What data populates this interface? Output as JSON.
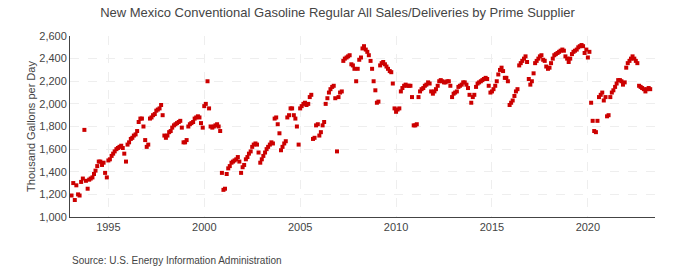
{
  "chart_data": {
    "type": "scatter",
    "title": "New Mexico Conventional Gasoline Regular All Sales/Deliveries by Prime Supplier",
    "ylabel": "Thousand Gallons per Day",
    "annotations": [
      "Source: U.S. Energy Information Administration"
    ],
    "color": "#cc0000",
    "marker": "square",
    "grid": true,
    "xlim": [
      1993.0,
      2023.5
    ],
    "xticks": [
      1995,
      2000,
      2005,
      2010,
      2015,
      2020
    ],
    "ylim": [
      1000,
      2600
    ],
    "yticks": [
      {
        "value": 1000,
        "label": "1,000"
      },
      {
        "value": 1200,
        "label": "1,200"
      },
      {
        "value": 1400,
        "label": "1,400"
      },
      {
        "value": 1600,
        "label": "1,600"
      },
      {
        "value": 1800,
        "label": "1,800"
      },
      {
        "value": 2000,
        "label": "2,000"
      },
      {
        "value": 2200,
        "label": "2,200"
      },
      {
        "value": 2400,
        "label": "2,400"
      },
      {
        "value": 2600,
        "label": "2,600"
      }
    ],
    "x": [
      1993.08,
      1993.17,
      1993.25,
      1993.33,
      1993.42,
      1993.5,
      1993.58,
      1993.67,
      1993.75,
      1993.83,
      1993.92,
      1994.0,
      1994.08,
      1994.17,
      1994.25,
      1994.33,
      1994.42,
      1994.5,
      1994.58,
      1994.67,
      1994.75,
      1994.83,
      1994.92,
      1995.0,
      1995.08,
      1995.17,
      1995.25,
      1995.33,
      1995.42,
      1995.5,
      1995.58,
      1995.67,
      1995.75,
      1995.83,
      1995.92,
      1996.0,
      1996.08,
      1996.17,
      1996.25,
      1996.33,
      1996.42,
      1996.5,
      1996.58,
      1996.67,
      1996.75,
      1996.83,
      1996.92,
      1997.0,
      1997.08,
      1997.17,
      1997.25,
      1997.33,
      1997.42,
      1997.5,
      1997.58,
      1997.67,
      1997.75,
      1997.83,
      1997.92,
      1998.0,
      1998.08,
      1998.17,
      1998.25,
      1998.33,
      1998.42,
      1998.5,
      1998.58,
      1998.67,
      1998.75,
      1998.83,
      1998.92,
      1999.0,
      1999.08,
      1999.17,
      1999.25,
      1999.33,
      1999.42,
      1999.5,
      1999.58,
      1999.67,
      1999.75,
      1999.83,
      1999.92,
      2000.0,
      2000.08,
      2000.17,
      2000.25,
      2000.33,
      2000.42,
      2000.5,
      2000.58,
      2000.67,
      2000.75,
      2000.83,
      2000.92,
      2001.0,
      2001.08,
      2001.17,
      2001.25,
      2001.33,
      2001.42,
      2001.5,
      2001.58,
      2001.67,
      2001.75,
      2001.83,
      2001.92,
      2002.0,
      2002.08,
      2002.17,
      2002.25,
      2002.33,
      2002.42,
      2002.5,
      2002.58,
      2002.67,
      2002.75,
      2002.83,
      2002.92,
      2003.0,
      2003.08,
      2003.17,
      2003.25,
      2003.33,
      2003.42,
      2003.5,
      2003.58,
      2003.67,
      2003.75,
      2003.83,
      2003.92,
      2004.0,
      2004.08,
      2004.17,
      2004.25,
      2004.33,
      2004.42,
      2004.5,
      2004.58,
      2004.67,
      2004.75,
      2004.83,
      2004.92,
      2005.0,
      2005.08,
      2005.17,
      2005.25,
      2005.33,
      2005.42,
      2005.5,
      2005.58,
      2005.67,
      2005.75,
      2005.83,
      2005.92,
      2006.0,
      2006.08,
      2006.17,
      2006.25,
      2006.33,
      2006.42,
      2006.5,
      2006.58,
      2006.67,
      2006.75,
      2006.83,
      2006.92,
      2007.0,
      2007.08,
      2007.17,
      2007.25,
      2007.33,
      2007.42,
      2007.5,
      2007.58,
      2007.67,
      2007.75,
      2007.83,
      2007.92,
      2008.0,
      2008.08,
      2008.17,
      2008.25,
      2008.33,
      2008.42,
      2008.5,
      2008.58,
      2008.67,
      2008.75,
      2008.83,
      2008.92,
      2009.0,
      2009.08,
      2009.17,
      2009.25,
      2009.33,
      2009.42,
      2009.5,
      2009.58,
      2009.67,
      2009.75,
      2009.83,
      2009.92,
      2010.0,
      2010.08,
      2010.17,
      2010.25,
      2010.33,
      2010.42,
      2010.5,
      2010.58,
      2010.67,
      2010.75,
      2010.83,
      2010.92,
      2011.0,
      2011.08,
      2011.17,
      2011.25,
      2011.33,
      2011.42,
      2011.5,
      2011.58,
      2011.67,
      2011.75,
      2011.83,
      2011.92,
      2012.0,
      2012.08,
      2012.17,
      2012.25,
      2012.33,
      2012.42,
      2012.5,
      2012.58,
      2012.67,
      2012.75,
      2012.83,
      2012.92,
      2013.0,
      2013.08,
      2013.17,
      2013.25,
      2013.33,
      2013.42,
      2013.5,
      2013.58,
      2013.67,
      2013.75,
      2013.83,
      2013.92,
      2014.0,
      2014.08,
      2014.17,
      2014.25,
      2014.33,
      2014.42,
      2014.5,
      2014.58,
      2014.67,
      2014.75,
      2014.83,
      2014.92,
      2015.0,
      2015.08,
      2015.17,
      2015.25,
      2015.33,
      2015.42,
      2015.5,
      2015.58,
      2015.67,
      2015.75,
      2015.83,
      2015.92,
      2016.0,
      2016.08,
      2016.17,
      2016.25,
      2016.33,
      2016.42,
      2016.5,
      2016.58,
      2016.67,
      2016.75,
      2016.83,
      2016.92,
      2017.0,
      2017.08,
      2017.17,
      2017.25,
      2017.33,
      2017.42,
      2017.5,
      2017.58,
      2017.67,
      2017.75,
      2017.83,
      2017.92,
      2018.0,
      2018.08,
      2018.17,
      2018.25,
      2018.33,
      2018.42,
      2018.5,
      2018.58,
      2018.67,
      2018.75,
      2018.83,
      2018.92,
      2019.0,
      2019.08,
      2019.17,
      2019.25,
      2019.33,
      2019.42,
      2019.5,
      2019.58,
      2019.67,
      2019.75,
      2019.83,
      2019.92,
      2020.0,
      2020.08,
      2020.17,
      2020.25,
      2020.33,
      2020.42,
      2020.5,
      2020.58,
      2020.67,
      2020.75,
      2020.83,
      2020.92,
      2021.0,
      2021.08,
      2021.17,
      2021.25,
      2021.33,
      2021.42,
      2021.5,
      2021.58,
      2021.67,
      2021.75,
      2021.83,
      2021.92,
      2022.0,
      2022.08,
      2022.17,
      2022.25,
      2022.33,
      2022.42,
      2022.5,
      2022.58,
      2022.67,
      2022.75,
      2022.83,
      2022.92,
      2023.0,
      2023.08,
      2023.17,
      2023.25
    ],
    "values": [
      1190,
      1300,
      1150,
      1280,
      1200,
      1190,
      1310,
      1340,
      1770,
      1320,
      1250,
      1330,
      1340,
      1350,
      1380,
      1410,
      1450,
      1490,
      1490,
      1460,
      1480,
      1390,
      1350,
      1500,
      1510,
      1540,
      1560,
      1580,
      1600,
      1610,
      1620,
      1630,
      1610,
      1560,
      1490,
      1640,
      1660,
      1690,
      1700,
      1720,
      1730,
      1760,
      1840,
      1870,
      1870,
      1800,
      1680,
      1620,
      1640,
      1870,
      1880,
      1900,
      1910,
      1940,
      1950,
      1960,
      1990,
      1900,
      1720,
      1700,
      1720,
      1750,
      1760,
      1790,
      1810,
      1820,
      1830,
      1840,
      1850,
      1790,
      1660,
      1660,
      1680,
      1800,
      1820,
      1830,
      1840,
      1870,
      1880,
      1890,
      1880,
      1830,
      1790,
      1980,
      2000,
      2200,
      1960,
      1800,
      1790,
      1800,
      1810,
      1820,
      1800,
      1760,
      1390,
      1240,
      1250,
      1380,
      1430,
      1450,
      1480,
      1490,
      1500,
      1510,
      1530,
      1490,
      1390,
      1440,
      1460,
      1510,
      1530,
      1560,
      1580,
      1620,
      1640,
      1650,
      1640,
      1570,
      1480,
      1510,
      1540,
      1570,
      1600,
      1620,
      1640,
      1660,
      1650,
      1870,
      1880,
      1820,
      1740,
      1590,
      1620,
      1650,
      1670,
      1880,
      1900,
      1960,
      1960,
      1900,
      1870,
      1800,
      1640,
      1960,
      1980,
      2000,
      2010,
      1990,
      2000,
      2060,
      2080,
      1690,
      1700,
      1810,
      1820,
      1720,
      1750,
      1810,
      1840,
      2000,
      2050,
      2100,
      2130,
      2150,
      2160,
      2050,
      1580,
      2060,
      2100,
      2110,
      2380,
      2400,
      2410,
      2420,
      2430,
      2350,
      2340,
      2310,
      2200,
      2310,
      2390,
      2410,
      2490,
      2510,
      2480,
      2460,
      2430,
      2380,
      2310,
      2200,
      2120,
      2010,
      2020,
      2340,
      2360,
      2370,
      2350,
      2330,
      2310,
      2290,
      2280,
      2180,
      1960,
      1930,
      1950,
      1960,
      2110,
      2140,
      2160,
      2170,
      2160,
      2160,
      2160,
      2060,
      1810,
      1810,
      1820,
      2060,
      2110,
      2130,
      2140,
      2160,
      2170,
      2190,
      2180,
      2110,
      2090,
      2110,
      2130,
      2160,
      2200,
      2210,
      2200,
      2190,
      2190,
      2200,
      2200,
      2160,
      2060,
      2090,
      2100,
      2110,
      2150,
      2160,
      2170,
      2190,
      2190,
      2170,
      2140,
      2080,
      2010,
      2060,
      2080,
      2150,
      2180,
      2190,
      2200,
      2210,
      2220,
      2230,
      2220,
      2160,
      2100,
      2110,
      2130,
      2160,
      2200,
      2260,
      2300,
      2320,
      2290,
      2230,
      2230,
      2200,
      1990,
      2010,
      2030,
      2070,
      2110,
      2130,
      2340,
      2360,
      2380,
      2400,
      2420,
      2370,
      2220,
      2170,
      2200,
      2270,
      2360,
      2380,
      2400,
      2420,
      2430,
      2390,
      2380,
      2330,
      2310,
      2320,
      2360,
      2400,
      2430,
      2440,
      2450,
      2460,
      2470,
      2480,
      2470,
      2420,
      2400,
      2370,
      2400,
      2440,
      2460,
      2470,
      2480,
      2500,
      2510,
      2520,
      2510,
      2450,
      2480,
      2410,
      2460,
      2010,
      1850,
      1760,
      1750,
      1850,
      2060,
      2080,
      2100,
      2030,
      2060,
      1890,
      1900,
      2060,
      2100,
      2120,
      2150,
      2180,
      2210,
      2210,
      2200,
      2170,
      2190,
      2320,
      2360,
      2380,
      2400,
      2420,
      2400,
      2380,
      2360,
      2160,
      2150,
      2140,
      2130,
      2110,
      2130,
      2140,
      2130
    ]
  }
}
